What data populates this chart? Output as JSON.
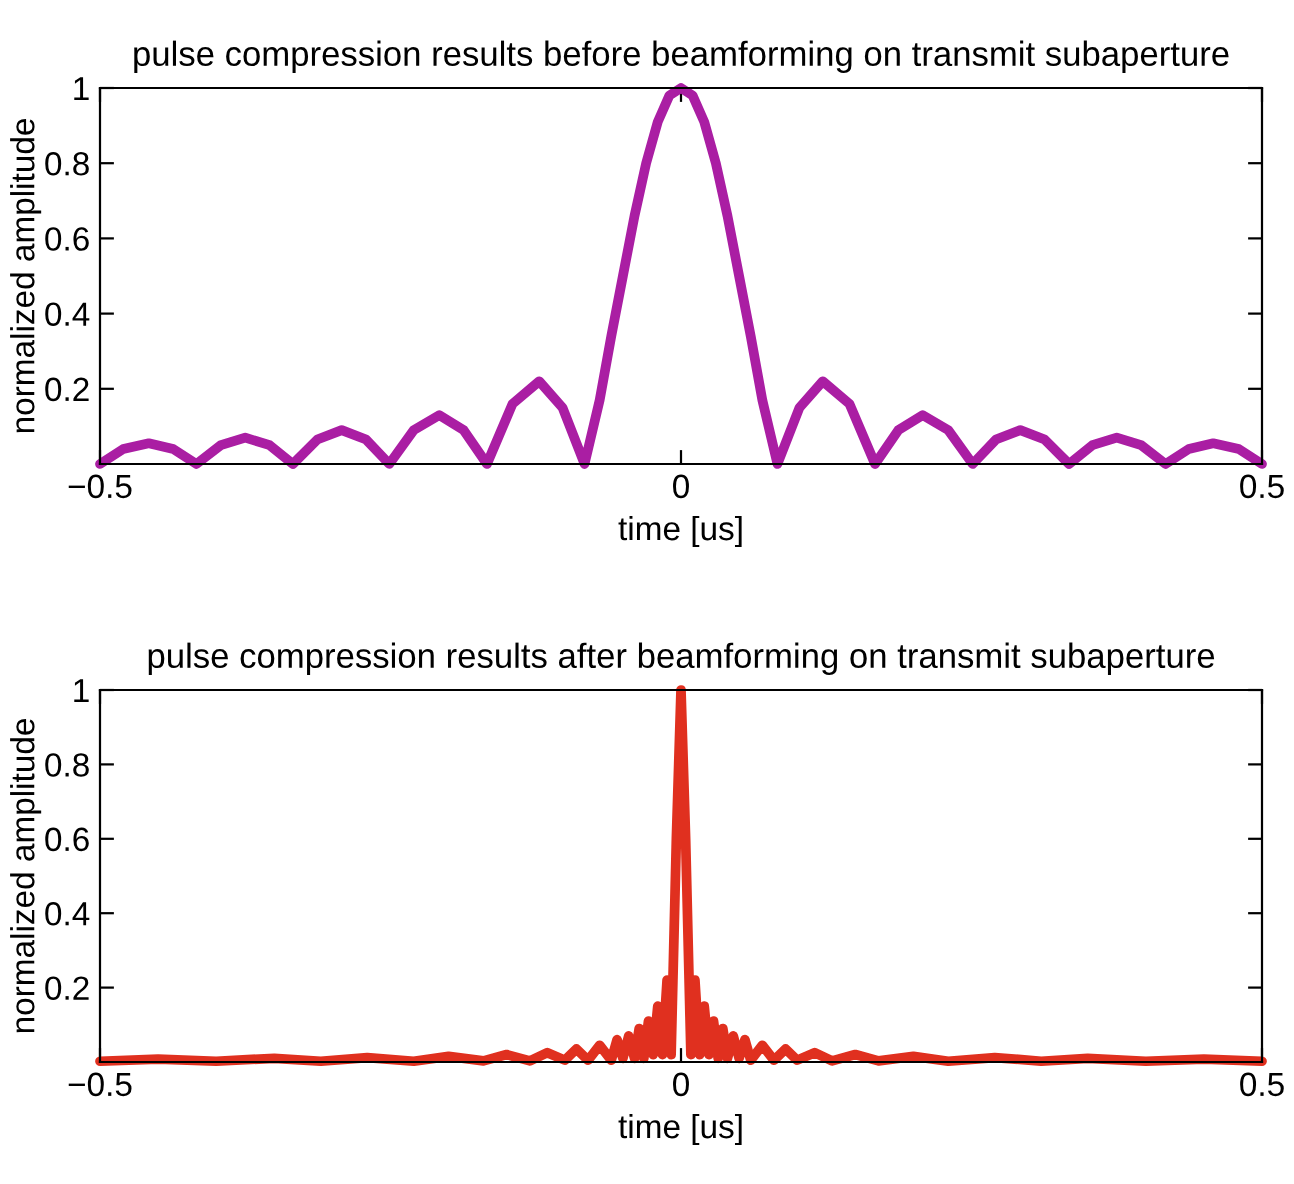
{
  "chart_data": [
    {
      "type": "line",
      "title": "pulse compression results before beamforming on transmit subaperture",
      "xlabel": "time [us]",
      "ylabel": "normalized amplitude",
      "xlim": [
        -0.5,
        0.5
      ],
      "ylim": [
        0,
        1
      ],
      "xticks": [
        {
          "value": -0.5,
          "label": "−0.5"
        },
        0,
        0.5
      ],
      "yticks": [
        0.2,
        0.4,
        0.6,
        0.8,
        1
      ],
      "series": [
        {
          "color": "#aa1ea3",
          "x": [
            -0.5,
            -0.48,
            -0.458,
            -0.437,
            -0.417,
            -0.396,
            -0.375,
            -0.354,
            -0.334,
            -0.313,
            -0.292,
            -0.271,
            -0.251,
            -0.23,
            -0.208,
            -0.187,
            -0.167,
            -0.145,
            -0.122,
            -0.102,
            -0.083,
            -0.07,
            -0.06,
            -0.05,
            -0.04,
            -0.03,
            -0.02,
            -0.01,
            0,
            0.01,
            0.02,
            0.03,
            0.04,
            0.05,
            0.06,
            0.07,
            0.083,
            0.102,
            0.122,
            0.145,
            0.167,
            0.187,
            0.208,
            0.23,
            0.251,
            0.271,
            0.292,
            0.313,
            0.334,
            0.354,
            0.375,
            0.396,
            0.417,
            0.437,
            0.458,
            0.48,
            0.5
          ],
          "values": [
            0,
            0.04,
            0.055,
            0.04,
            0,
            0.05,
            0.07,
            0.05,
            0,
            0.065,
            0.09,
            0.065,
            0,
            0.09,
            0.13,
            0.09,
            0,
            0.16,
            0.22,
            0.15,
            0,
            0.17,
            0.34,
            0.5,
            0.66,
            0.8,
            0.91,
            0.98,
            1,
            0.98,
            0.91,
            0.8,
            0.66,
            0.5,
            0.34,
            0.17,
            0,
            0.15,
            0.22,
            0.16,
            0,
            0.09,
            0.13,
            0.09,
            0,
            0.065,
            0.09,
            0.065,
            0,
            0.05,
            0.07,
            0.05,
            0,
            0.04,
            0.055,
            0.04,
            0
          ]
        }
      ]
    },
    {
      "type": "line",
      "title": "pulse compression results after beamforming on transmit subaperture",
      "xlabel": "time [us]",
      "ylabel": "normalized amplitude",
      "xlim": [
        -0.5,
        0.5
      ],
      "ylim": [
        0,
        1
      ],
      "xticks": [
        {
          "value": -0.5,
          "label": "−0.5"
        },
        0,
        0.5
      ],
      "yticks": [
        0.2,
        0.4,
        0.6,
        0.8,
        1
      ],
      "series": [
        {
          "color": "#e0301f",
          "x": [
            -0.5,
            -0.45,
            -0.4,
            -0.35,
            -0.31,
            -0.27,
            -0.23,
            -0.2,
            -0.17,
            -0.15,
            -0.13,
            -0.115,
            -0.1,
            -0.09,
            -0.08,
            -0.07,
            -0.06,
            -0.055,
            -0.05,
            -0.045,
            -0.04,
            -0.036,
            -0.032,
            -0.028,
            -0.024,
            -0.02,
            -0.016,
            -0.012,
            -0.0085,
            -0.004,
            0,
            0.004,
            0.0085,
            0.012,
            0.016,
            0.02,
            0.024,
            0.028,
            0.032,
            0.036,
            0.04,
            0.045,
            0.05,
            0.055,
            0.06,
            0.07,
            0.08,
            0.09,
            0.1,
            0.115,
            0.13,
            0.15,
            0.17,
            0.2,
            0.23,
            0.27,
            0.31,
            0.35,
            0.4,
            0.45,
            0.5
          ],
          "values": [
            0.002,
            0.008,
            0.002,
            0.01,
            0.002,
            0.012,
            0.002,
            0.015,
            0.003,
            0.02,
            0.003,
            0.025,
            0.005,
            0.035,
            0.005,
            0.045,
            0.005,
            0.06,
            0.01,
            0.07,
            0.01,
            0.09,
            0.01,
            0.11,
            0.02,
            0.15,
            0.02,
            0.22,
            0.02,
            0.6,
            1,
            0.6,
            0.02,
            0.22,
            0.02,
            0.15,
            0.02,
            0.11,
            0.01,
            0.09,
            0.01,
            0.07,
            0.01,
            0.06,
            0.005,
            0.045,
            0.005,
            0.035,
            0.005,
            0.025,
            0.003,
            0.02,
            0.003,
            0.015,
            0.002,
            0.012,
            0.002,
            0.01,
            0.002,
            0.008,
            0.002
          ]
        }
      ]
    }
  ]
}
